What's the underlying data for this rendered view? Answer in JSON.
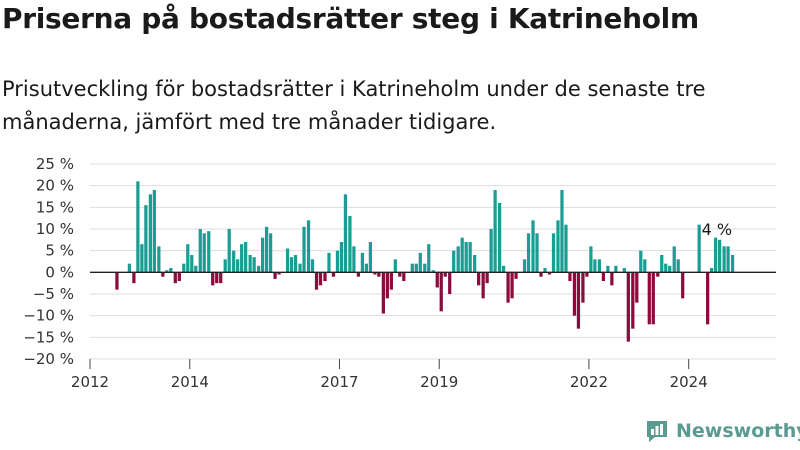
{
  "header": {
    "title": "Priserna på bostadsrätter steg i Katrineholm",
    "subtitle": "Prisutveckling för bostadsrätter i Katrineholm under de senaste tre månaderna, jämfört med tre månader tidigare."
  },
  "brand": {
    "name": "Newsworthy",
    "icon": "newsworthy-logo-icon",
    "color": "#5a9a91"
  },
  "colors": {
    "positive": "#1a9e93",
    "negative": "#8c0a3c",
    "grid": "#dddddd",
    "zero_line": "#222222"
  },
  "chart_data": {
    "type": "bar",
    "title": "",
    "xlabel": "",
    "ylabel": "",
    "ylim": [
      -20,
      25
    ],
    "yticks": [
      25,
      20,
      15,
      10,
      5,
      0,
      -5,
      -10,
      -15,
      -20
    ],
    "ytick_labels": [
      "25 %",
      "20 %",
      "15 %",
      "10 %",
      "5 %",
      "0 %",
      "−5 %",
      "−10 %",
      "−15 %",
      "−20 %"
    ],
    "xlim": [
      2012.0,
      2025.75
    ],
    "xticks": [
      2012,
      2014,
      2017,
      2019,
      2022,
      2024
    ],
    "xtick_labels": [
      "2012",
      "2014",
      "2017",
      "2019",
      "2022",
      "2024"
    ],
    "grid": true,
    "annotation": {
      "text": "4 %",
      "x": 2024.9,
      "y": 7.5
    },
    "bars": [
      {
        "x": 2012.54,
        "y": -4
      },
      {
        "x": 2012.79,
        "y": 2
      },
      {
        "x": 2012.88,
        "y": -2.5
      },
      {
        "x": 2012.96,
        "y": 21
      },
      {
        "x": 2013.04,
        "y": 6.5
      },
      {
        "x": 2013.12,
        "y": 15.5
      },
      {
        "x": 2013.21,
        "y": 18
      },
      {
        "x": 2013.29,
        "y": 19
      },
      {
        "x": 2013.38,
        "y": 6
      },
      {
        "x": 2013.46,
        "y": -1
      },
      {
        "x": 2013.54,
        "y": 0.5
      },
      {
        "x": 2013.62,
        "y": 1
      },
      {
        "x": 2013.71,
        "y": -2.5
      },
      {
        "x": 2013.79,
        "y": -2
      },
      {
        "x": 2013.88,
        "y": 2
      },
      {
        "x": 2013.96,
        "y": 6.5
      },
      {
        "x": 2014.04,
        "y": 4
      },
      {
        "x": 2014.12,
        "y": 1.5
      },
      {
        "x": 2014.21,
        "y": 10
      },
      {
        "x": 2014.29,
        "y": 9
      },
      {
        "x": 2014.38,
        "y": 9.5
      },
      {
        "x": 2014.46,
        "y": -3
      },
      {
        "x": 2014.54,
        "y": -2.5
      },
      {
        "x": 2014.62,
        "y": -2.5
      },
      {
        "x": 2014.71,
        "y": 3
      },
      {
        "x": 2014.79,
        "y": 10
      },
      {
        "x": 2014.88,
        "y": 5
      },
      {
        "x": 2014.96,
        "y": 3
      },
      {
        "x": 2015.04,
        "y": 6.5
      },
      {
        "x": 2015.12,
        "y": 7
      },
      {
        "x": 2015.21,
        "y": 4
      },
      {
        "x": 2015.29,
        "y": 3.5
      },
      {
        "x": 2015.38,
        "y": 1.5
      },
      {
        "x": 2015.46,
        "y": 8
      },
      {
        "x": 2015.54,
        "y": 10.5
      },
      {
        "x": 2015.62,
        "y": 9
      },
      {
        "x": 2015.71,
        "y": -1.5
      },
      {
        "x": 2015.79,
        "y": -0.5
      },
      {
        "x": 2015.96,
        "y": 5.5
      },
      {
        "x": 2016.04,
        "y": 3.5
      },
      {
        "x": 2016.12,
        "y": 4
      },
      {
        "x": 2016.21,
        "y": 2
      },
      {
        "x": 2016.29,
        "y": 10.5
      },
      {
        "x": 2016.38,
        "y": 12
      },
      {
        "x": 2016.46,
        "y": 3
      },
      {
        "x": 2016.54,
        "y": -4
      },
      {
        "x": 2016.62,
        "y": -3
      },
      {
        "x": 2016.71,
        "y": -2
      },
      {
        "x": 2016.79,
        "y": 4.5
      },
      {
        "x": 2016.88,
        "y": -1
      },
      {
        "x": 2016.96,
        "y": 5
      },
      {
        "x": 2017.04,
        "y": 7
      },
      {
        "x": 2017.12,
        "y": 18
      },
      {
        "x": 2017.21,
        "y": 13
      },
      {
        "x": 2017.29,
        "y": 6
      },
      {
        "x": 2017.38,
        "y": -1
      },
      {
        "x": 2017.46,
        "y": 4.5
      },
      {
        "x": 2017.54,
        "y": 2
      },
      {
        "x": 2017.62,
        "y": 7
      },
      {
        "x": 2017.71,
        "y": -0.5
      },
      {
        "x": 2017.79,
        "y": -1
      },
      {
        "x": 2017.88,
        "y": -9.5
      },
      {
        "x": 2017.96,
        "y": -6
      },
      {
        "x": 2018.04,
        "y": -4
      },
      {
        "x": 2018.12,
        "y": 3
      },
      {
        "x": 2018.21,
        "y": -1
      },
      {
        "x": 2018.29,
        "y": -2
      },
      {
        "x": 2018.46,
        "y": 2
      },
      {
        "x": 2018.54,
        "y": 2
      },
      {
        "x": 2018.62,
        "y": 4.5
      },
      {
        "x": 2018.71,
        "y": 2
      },
      {
        "x": 2018.79,
        "y": 6.5
      },
      {
        "x": 2018.88,
        "y": 0.5
      },
      {
        "x": 2018.96,
        "y": -3.5
      },
      {
        "x": 2019.04,
        "y": -9
      },
      {
        "x": 2019.12,
        "y": -1
      },
      {
        "x": 2019.21,
        "y": -5
      },
      {
        "x": 2019.29,
        "y": 5
      },
      {
        "x": 2019.38,
        "y": 6
      },
      {
        "x": 2019.46,
        "y": 8
      },
      {
        "x": 2019.54,
        "y": 7
      },
      {
        "x": 2019.62,
        "y": 7
      },
      {
        "x": 2019.71,
        "y": 4
      },
      {
        "x": 2019.79,
        "y": -3
      },
      {
        "x": 2019.88,
        "y": -6
      },
      {
        "x": 2019.96,
        "y": -2.5
      },
      {
        "x": 2020.04,
        "y": 10
      },
      {
        "x": 2020.12,
        "y": 19
      },
      {
        "x": 2020.21,
        "y": 16
      },
      {
        "x": 2020.29,
        "y": 1.5
      },
      {
        "x": 2020.38,
        "y": -7
      },
      {
        "x": 2020.46,
        "y": -6
      },
      {
        "x": 2020.54,
        "y": -1.5
      },
      {
        "x": 2020.71,
        "y": 3
      },
      {
        "x": 2020.79,
        "y": 9
      },
      {
        "x": 2020.88,
        "y": 12
      },
      {
        "x": 2020.96,
        "y": 9
      },
      {
        "x": 2021.04,
        "y": -1
      },
      {
        "x": 2021.12,
        "y": 1
      },
      {
        "x": 2021.21,
        "y": -0.5
      },
      {
        "x": 2021.29,
        "y": 9
      },
      {
        "x": 2021.38,
        "y": 12
      },
      {
        "x": 2021.46,
        "y": 19
      },
      {
        "x": 2021.54,
        "y": 11
      },
      {
        "x": 2021.62,
        "y": -2
      },
      {
        "x": 2021.71,
        "y": -10
      },
      {
        "x": 2021.79,
        "y": -13
      },
      {
        "x": 2021.88,
        "y": -7
      },
      {
        "x": 2021.96,
        "y": -1
      },
      {
        "x": 2022.04,
        "y": 6
      },
      {
        "x": 2022.12,
        "y": 3
      },
      {
        "x": 2022.21,
        "y": 3
      },
      {
        "x": 2022.29,
        "y": -2
      },
      {
        "x": 2022.38,
        "y": 1.5
      },
      {
        "x": 2022.46,
        "y": -3
      },
      {
        "x": 2022.54,
        "y": 1.5
      },
      {
        "x": 2022.71,
        "y": 1
      },
      {
        "x": 2022.79,
        "y": -16
      },
      {
        "x": 2022.88,
        "y": -13
      },
      {
        "x": 2022.96,
        "y": -7
      },
      {
        "x": 2023.04,
        "y": 5
      },
      {
        "x": 2023.12,
        "y": 3
      },
      {
        "x": 2023.21,
        "y": -12
      },
      {
        "x": 2023.29,
        "y": -12
      },
      {
        "x": 2023.38,
        "y": -1
      },
      {
        "x": 2023.46,
        "y": 4
      },
      {
        "x": 2023.54,
        "y": 2
      },
      {
        "x": 2023.62,
        "y": 1.5
      },
      {
        "x": 2023.71,
        "y": 6
      },
      {
        "x": 2023.79,
        "y": 3
      },
      {
        "x": 2023.88,
        "y": -6
      },
      {
        "x": 2024.21,
        "y": 11
      },
      {
        "x": 2024.38,
        "y": -12
      },
      {
        "x": 2024.46,
        "y": 1
      },
      {
        "x": 2024.54,
        "y": 8
      },
      {
        "x": 2024.62,
        "y": 7.5
      },
      {
        "x": 2024.71,
        "y": 6
      },
      {
        "x": 2024.79,
        "y": 6
      },
      {
        "x": 2024.88,
        "y": 4
      }
    ]
  }
}
